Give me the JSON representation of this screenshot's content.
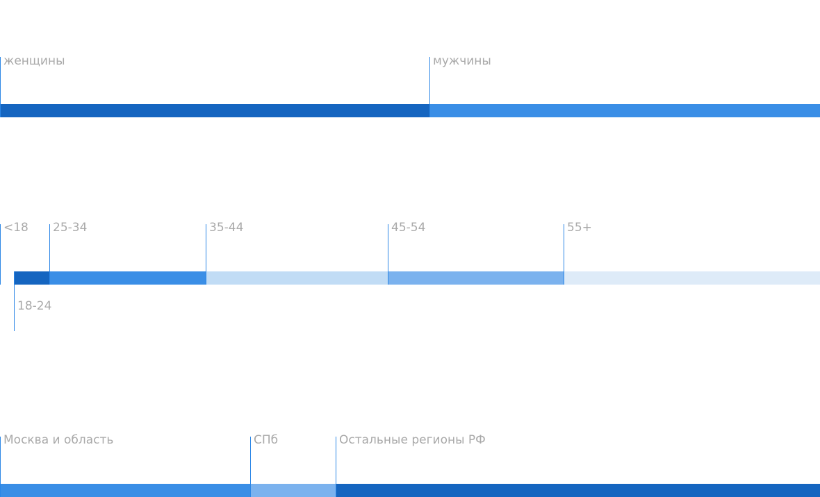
{
  "chart_data": [
    {
      "type": "bar",
      "section_title": "",
      "categories": [
        "женщины",
        "мужчины"
      ],
      "values": [
        52.4,
        47.6
      ],
      "value_labels": [
        "",
        ""
      ],
      "colors": [
        "#1565c0",
        "#3a8ee6"
      ]
    },
    {
      "type": "bar",
      "section_title": "",
      "categories": [
        "<18",
        "18-24",
        "25-34",
        "35-44",
        "45-54",
        "55+"
      ],
      "values": [
        1.7,
        4.3,
        19.1,
        22.2,
        21.4,
        31.3
      ],
      "value_labels": [
        "",
        "",
        "",
        "",
        "",
        ""
      ],
      "colors": [
        "#ffffff",
        "#1565c0",
        "#3a8ee6",
        "#c1dcf5",
        "#7bb2ee",
        "#deebf8"
      ]
    },
    {
      "type": "bar",
      "section_title": "",
      "categories": [
        "Москва и область",
        "СПб",
        "Остальные регионы РФ"
      ],
      "values": [
        30.5,
        10.4,
        59.1
      ],
      "value_labels": [
        "",
        "",
        ""
      ],
      "colors": [
        "#3a8ee6",
        "#7bb2ee",
        "#1565c0"
      ]
    }
  ]
}
